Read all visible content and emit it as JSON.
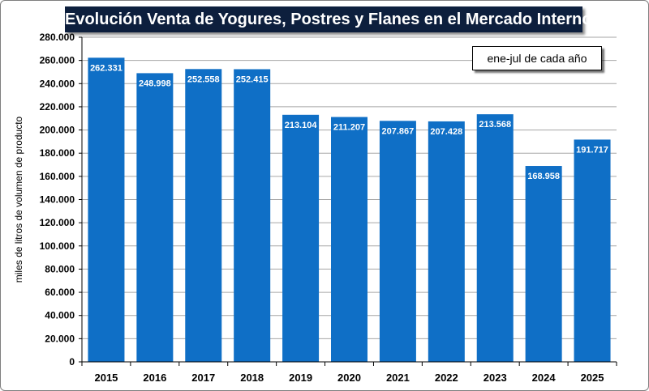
{
  "chart_data": {
    "type": "bar",
    "title": "Evolución Venta de Yogures, Postres y Flanes en el Mercado Interno",
    "annotation": "ene-jul de cada año",
    "xlabel": "",
    "ylabel": "miles de litros de volumen de producto",
    "ylim": [
      0,
      280000
    ],
    "ytick_step": 20000,
    "ytick_labels": [
      "0",
      "20.000",
      "40.000",
      "60.000",
      "80.000",
      "100.000",
      "120.000",
      "140.000",
      "160.000",
      "180.000",
      "200.000",
      "220.000",
      "240.000",
      "260.000",
      "280.000"
    ],
    "grid": true,
    "categories": [
      "2015",
      "2016",
      "2017",
      "2018",
      "2019",
      "2020",
      "2021",
      "2022",
      "2023",
      "2024",
      "2025"
    ],
    "values": [
      262331,
      248998,
      252558,
      252415,
      213104,
      211207,
      207867,
      207428,
      213568,
      168958,
      191717
    ],
    "data_labels": [
      "262.331",
      "248.998",
      "252.558",
      "252.415",
      "213.104",
      "211.207",
      "207.867",
      "207.428",
      "213.568",
      "168.958",
      "191.717"
    ],
    "colors": {
      "bar": "#0f6fc6",
      "grid": "#a6a6a6",
      "title_bg": "#0d1f3d"
    }
  }
}
